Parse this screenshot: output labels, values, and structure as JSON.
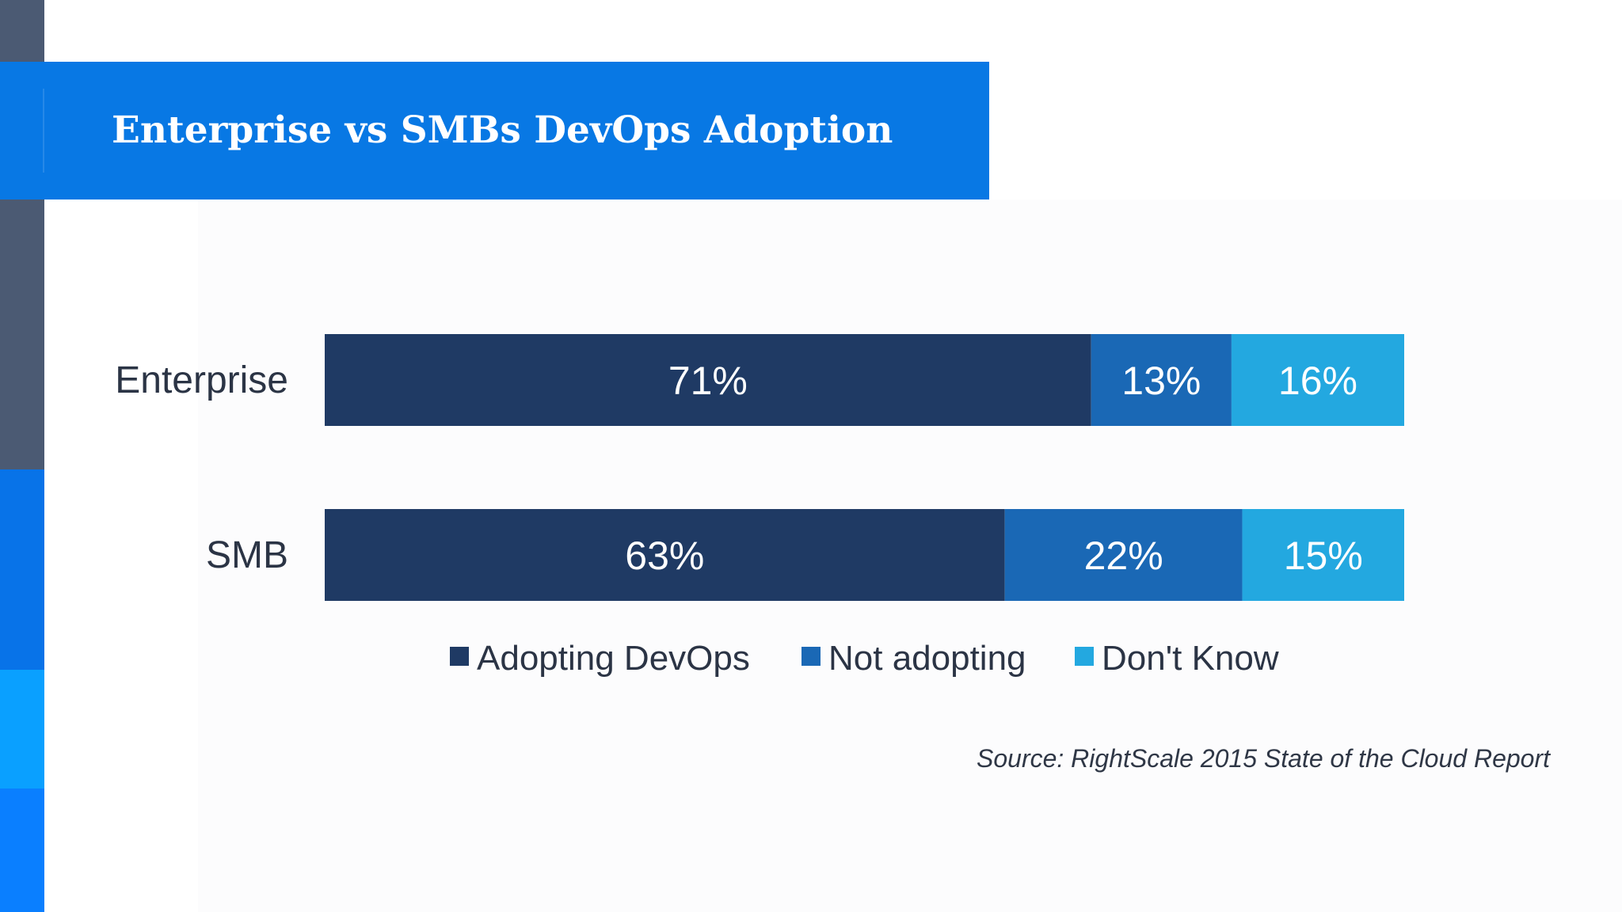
{
  "slide": {
    "title": "Enterprise vs SMBs DevOps Adoption",
    "source": "Source: RightScale 2015 State of the Cloud Report"
  },
  "colors": {
    "strip_gray": "#4b5a73",
    "strip_blue": "#0873e8",
    "strip_cyan": "#0aa0ff",
    "title_banner": "#0878e4",
    "series_adopting": "#1f3a64",
    "series_not_adopting": "#1a68b5",
    "series_dont_know": "#23a8e0"
  },
  "chart_data": {
    "type": "bar",
    "orientation": "horizontal",
    "stacked": true,
    "categories": [
      "Enterprise",
      "SMB"
    ],
    "series": [
      {
        "name": "Adopting DevOps",
        "values": [
          71,
          63
        ],
        "labels": [
          "71%",
          "63%"
        ],
        "color": "#1f3a64"
      },
      {
        "name": "Not adopting",
        "values": [
          13,
          22
        ],
        "labels": [
          "13%",
          "22%"
        ],
        "color": "#1a68b5"
      },
      {
        "name": "Don't Know",
        "values": [
          16,
          15
        ],
        "labels": [
          "16%",
          "15%"
        ],
        "color": "#23a8e0"
      }
    ],
    "xlim": [
      0,
      100
    ],
    "unit": "%",
    "grid": false,
    "legend_position": "bottom"
  }
}
